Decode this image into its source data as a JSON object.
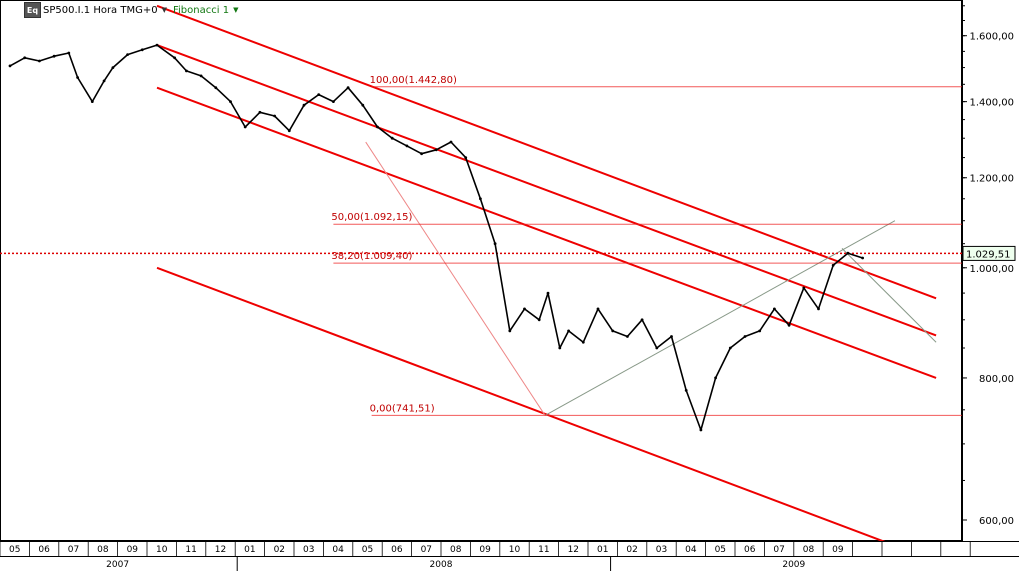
{
  "header": {
    "eq_badge": "Eq",
    "symbol_label": "SP500.I.1 Hora TMG+0",
    "indicator_label": "Fibonacci 1"
  },
  "colors": {
    "channel": "#ee0000",
    "fib_line": "#ee2222",
    "fan_line": "#889988",
    "price": "#000000",
    "last_price_box": "#eeffee"
  },
  "chart_data": {
    "type": "line",
    "title": "SP500.I.1 Hora TMG+0",
    "y_scale": "log",
    "ylim": [
      575,
      1720
    ],
    "x_range": [
      "2007-05",
      "2009-10"
    ],
    "y_ticks": [
      {
        "value": 600,
        "label": "600,00"
      },
      {
        "value": 800,
        "label": "800,00"
      },
      {
        "value": 1000,
        "label": "1.000,00"
      },
      {
        "value": 1200,
        "label": "1.200,00"
      },
      {
        "value": 1400,
        "label": "1.400,00"
      },
      {
        "value": 1600,
        "label": "1.600,00"
      }
    ],
    "x_month_labels": [
      "05",
      "06",
      "07",
      "08",
      "09",
      "10",
      "11",
      "12",
      "01",
      "02",
      "03",
      "04",
      "05",
      "06",
      "07",
      "08",
      "09",
      "10",
      "11",
      "12",
      "01",
      "02",
      "03",
      "04",
      "05",
      "06",
      "07",
      "08",
      "09"
    ],
    "x_year_labels": [
      {
        "label": "2007",
        "at": 3.5
      },
      {
        "label": "2008",
        "at": 14.5
      },
      {
        "label": "2009",
        "at": 26.5
      }
    ],
    "last_price": {
      "value": 1029.51,
      "label": "1.029,51"
    },
    "fibonacci_levels": [
      {
        "pct": "100,00",
        "value": 1442.8,
        "label": "100,00(1.442,80)"
      },
      {
        "pct": "50,00",
        "value": 1092.15,
        "label": "50,00(1.092,15)"
      },
      {
        "pct": "38,20",
        "value": 1009.4,
        "label": "38,20(1.009,40)"
      },
      {
        "pct": "0,00",
        "value": 741.51,
        "label": "0,00(741,51)"
      }
    ],
    "price_series": {
      "name": "",
      "x": [
        0,
        0.5,
        1,
        1.5,
        2,
        2.3,
        2.8,
        3.2,
        3.5,
        4,
        4.5,
        5,
        5.6,
        6,
        6.5,
        7,
        7.5,
        8,
        8.5,
        9,
        9.5,
        10,
        10.5,
        11,
        11.5,
        12,
        12.5,
        13,
        13.5,
        14,
        14.5,
        15,
        15.5,
        16,
        16.5,
        17,
        17.5,
        18,
        18.3,
        18.7,
        19,
        19.5,
        20,
        20.5,
        21,
        21.5,
        22,
        22.5,
        23,
        23.5,
        24,
        24.5,
        25,
        25.5,
        26,
        26.5,
        27,
        27.5,
        28,
        28.5,
        29
      ],
      "values": [
        1505,
        1530,
        1520,
        1535,
        1545,
        1470,
        1400,
        1460,
        1500,
        1540,
        1555,
        1570,
        1530,
        1490,
        1475,
        1440,
        1400,
        1330,
        1370,
        1360,
        1320,
        1390,
        1420,
        1400,
        1440,
        1390,
        1330,
        1300,
        1280,
        1260,
        1270,
        1290,
        1250,
        1150,
        1050,
        880,
        920,
        900,
        950,
        850,
        880,
        860,
        920,
        880,
        870,
        900,
        850,
        870,
        780,
        720,
        800,
        850,
        870,
        880,
        920,
        890,
        960,
        920,
        1005,
        1030,
        1020
      ]
    },
    "channels": [
      {
        "points": [
          [
            5,
            1700
          ],
          [
            31.5,
            940
          ]
        ]
      },
      {
        "points": [
          [
            5,
            1570
          ],
          [
            31.5,
            872
          ]
        ]
      },
      {
        "points": [
          [
            5,
            1440
          ],
          [
            31.5,
            800
          ]
        ]
      },
      {
        "points": [
          [
            5,
            1000
          ],
          [
            31.5,
            552
          ]
        ]
      }
    ],
    "fan_lines": [
      {
        "points": [
          [
            12.1,
            1290
          ],
          [
            18.2,
            741.5
          ]
        ]
      },
      {
        "points": [
          [
            18.2,
            741.5
          ],
          [
            30.1,
            1100
          ]
        ]
      },
      {
        "points": [
          [
            28.3,
            1040
          ],
          [
            31.5,
            860
          ]
        ]
      }
    ]
  }
}
